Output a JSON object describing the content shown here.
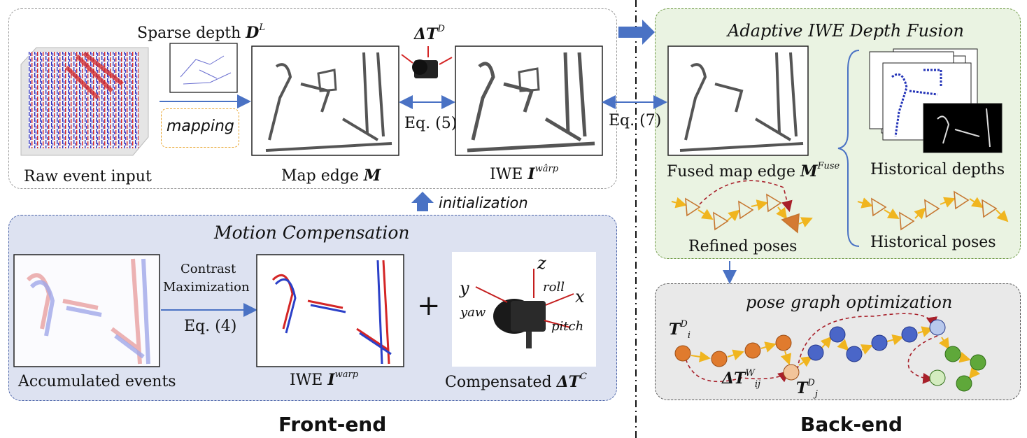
{
  "frontend": {
    "raw_event_label": "Raw event input",
    "sparse_depth_label": "Sparse depth ",
    "sparse_depth_sym": "D",
    "sparse_depth_sup": "L",
    "mapping_label": "mapping",
    "map_edge_label": "Map edge ",
    "map_edge_sym": "M",
    "delta_t_d_sym": "ΔT",
    "delta_t_d_sup": "D",
    "eq5": "Eq. (5)",
    "iwe_hat_label": "IWE ",
    "iwe_hat_sym": "I",
    "iwe_hat_sup": "wârp",
    "initialization": "initialization"
  },
  "motion": {
    "title": "Motion Compensation",
    "contrast": "Contrast",
    "maximization": "Maximization",
    "eq4": "Eq. (4)",
    "accumulated_label": "Accumulated events",
    "iwe_label": "IWE ",
    "iwe_sym": "I",
    "iwe_sup": "warp",
    "plus": "+",
    "compensated_label": "Compensated ",
    "compensated_sym": "ΔT",
    "compensated_sup": "C",
    "axis_y": "y",
    "axis_z": "z",
    "axis_x": "x",
    "roll": "roll",
    "yaw": "yaw",
    "pitch": "pitch"
  },
  "fusion": {
    "title": "Adaptive IWE Depth Fusion",
    "eq7": "Eq. (7)",
    "fused_label": "Fused map edge ",
    "fused_sym": "M",
    "fused_sup": "Fuse",
    "historical_depths": "Historical depths",
    "refined_poses": "Refined poses",
    "historical_poses": "Historical poses"
  },
  "pgo": {
    "title": "pose graph optimization",
    "ti_sym": "T",
    "ti_sup": "D",
    "ti_sub": "i",
    "tij_sym": "ΔT",
    "tij_sup": "W",
    "tij_sub": "ij",
    "tj_sym": "T",
    "tj_sup": "D",
    "tj_sub": "j"
  },
  "footer": {
    "frontend": "Front-end",
    "backend": "Back-end"
  },
  "colors": {
    "arrow_blue": "#4a72c4",
    "pose_orange": "#e07b2e",
    "pose_blue": "#4a66c8",
    "pose_green": "#5fa83a",
    "dashed_red": "#a8202a"
  }
}
